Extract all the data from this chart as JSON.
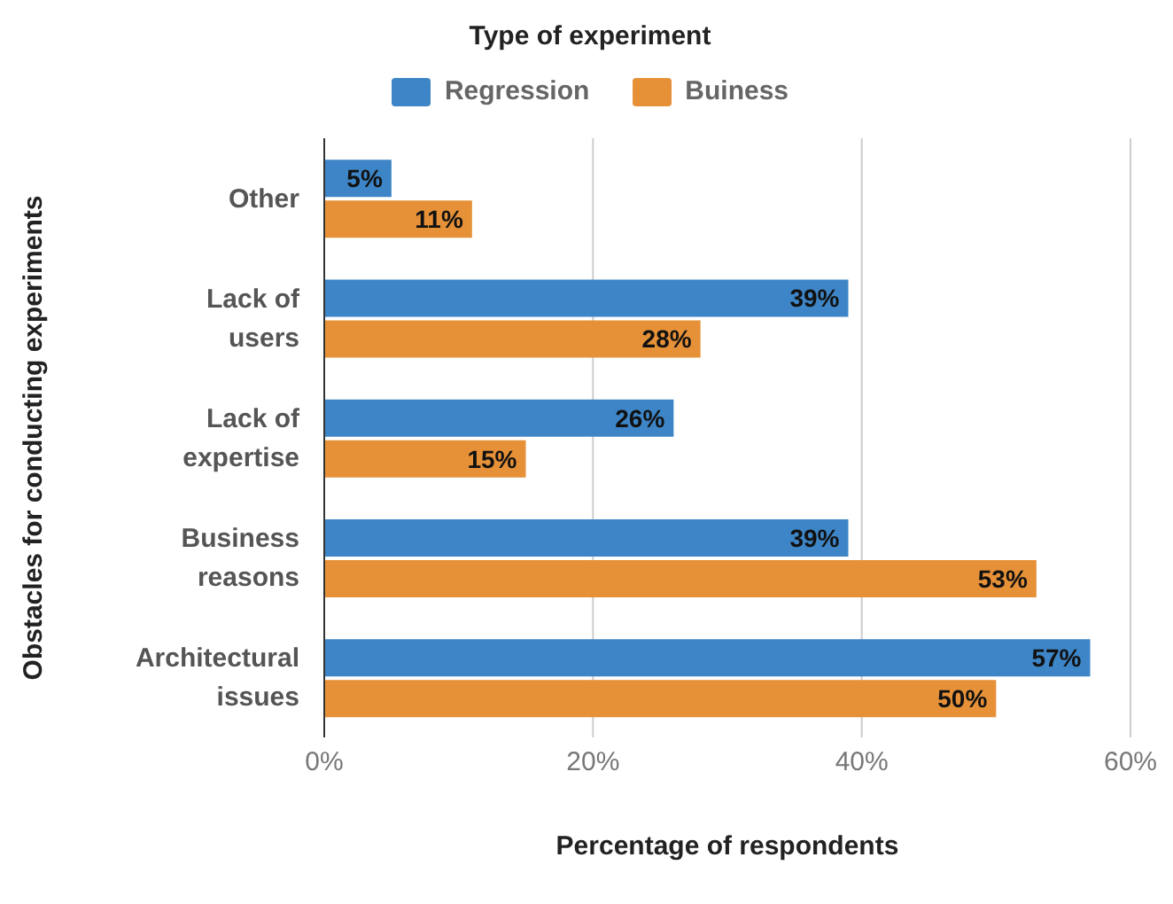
{
  "chart_data": {
    "type": "bar",
    "orientation": "horizontal",
    "legend_title": "Type of experiment",
    "xlabel": "Percentage of respondents",
    "ylabel": "Obstacles for conducting experiments",
    "categories": [
      "Other",
      "Lack of users",
      "Lack of expertise",
      "Business reasons",
      "Architectural issues"
    ],
    "series": [
      {
        "name": "Regression",
        "color": "#3d85c6",
        "values": [
          5,
          39,
          26,
          39,
          57
        ],
        "value_labels": [
          "5%",
          "39%",
          "26%",
          "39%",
          "57%"
        ]
      },
      {
        "name": "Buiness",
        "color": "#e69138",
        "values": [
          11,
          28,
          15,
          53,
          50
        ],
        "value_labels": [
          "11%",
          "28%",
          "15%",
          "53%",
          "50%"
        ]
      }
    ],
    "xlim": [
      0,
      60
    ],
    "xticks": [
      {
        "value": 0,
        "label": "0%"
      },
      {
        "value": 20,
        "label": "20%"
      },
      {
        "value": 40,
        "label": "40%"
      },
      {
        "value": 60,
        "label": "60%"
      }
    ],
    "grid": "x",
    "legend": "top"
  }
}
